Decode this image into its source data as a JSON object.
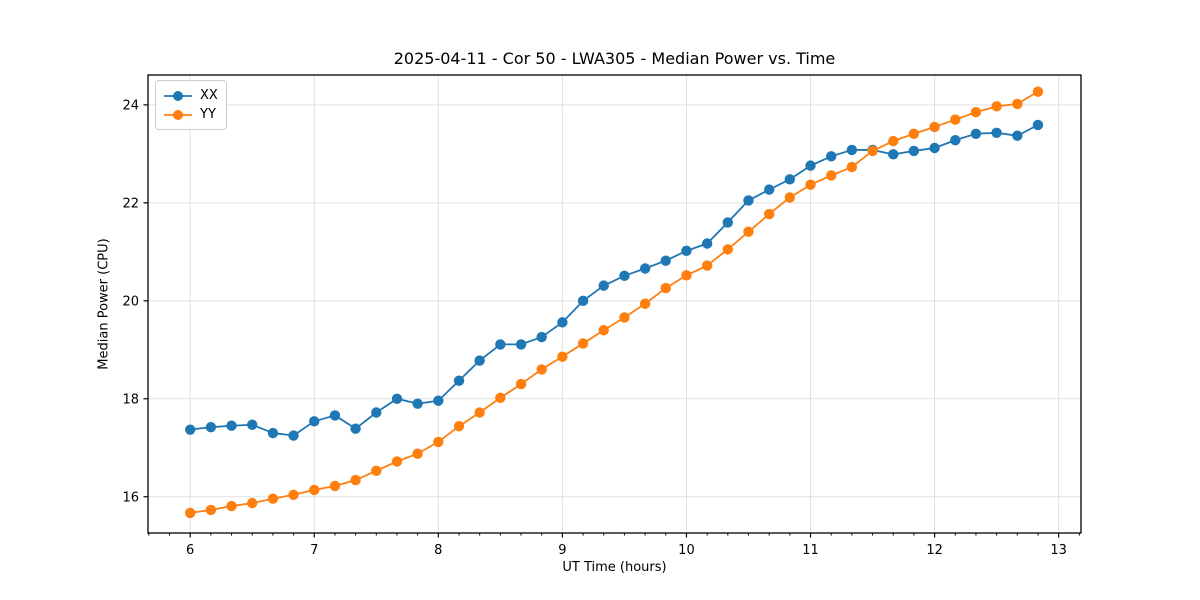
{
  "chart_data": {
    "type": "line",
    "title": "2025-04-11 - Cor 50 - LWA305 - Median Power vs. Time",
    "xlabel": "UT Time (hours)",
    "ylabel": "Median Power (CPU)",
    "xlim": [
      5.66,
      13.18
    ],
    "ylim": [
      15.26,
      24.61
    ],
    "x_ticks": [
      6,
      7,
      8,
      9,
      10,
      11,
      12,
      13
    ],
    "y_ticks": [
      16,
      18,
      20,
      22,
      24
    ],
    "x_minor_step": 0.1667,
    "grid": true,
    "grid_color": "#e0e0e0",
    "legend_position": "upper-left",
    "x": [
      6.0,
      6.167,
      6.333,
      6.5,
      6.667,
      6.833,
      7.0,
      7.167,
      7.333,
      7.5,
      7.667,
      7.833,
      8.0,
      8.167,
      8.333,
      8.5,
      8.667,
      8.833,
      9.0,
      9.167,
      9.333,
      9.5,
      9.667,
      9.833,
      10.0,
      10.167,
      10.333,
      10.5,
      10.667,
      10.833,
      11.0,
      11.167,
      11.333,
      11.5,
      11.667,
      11.833,
      12.0,
      12.167,
      12.333,
      12.5,
      12.667,
      12.833
    ],
    "series": [
      {
        "name": "XX",
        "color": "#1f77b4",
        "values": [
          17.37,
          17.42,
          17.45,
          17.47,
          17.3,
          17.25,
          17.54,
          17.66,
          17.39,
          17.72,
          18.0,
          17.9,
          17.96,
          18.37,
          18.78,
          19.11,
          19.11,
          19.26,
          19.56,
          20.0,
          20.31,
          20.51,
          20.66,
          20.82,
          21.02,
          21.17,
          21.6,
          22.05,
          22.27,
          22.48,
          22.76,
          22.95,
          23.08,
          23.08,
          22.99,
          23.06,
          23.12,
          23.28,
          23.41,
          23.43,
          23.37,
          23.59
        ]
      },
      {
        "name": "YY",
        "color": "#ff7f0e",
        "values": [
          15.67,
          15.73,
          15.81,
          15.87,
          15.96,
          16.04,
          16.14,
          16.22,
          16.34,
          16.53,
          16.72,
          16.88,
          17.12,
          17.44,
          17.72,
          18.02,
          18.3,
          18.6,
          18.86,
          19.13,
          19.4,
          19.66,
          19.94,
          20.26,
          20.52,
          20.72,
          21.05,
          21.41,
          21.77,
          22.11,
          22.37,
          22.56,
          22.73,
          23.06,
          23.26,
          23.41,
          23.55,
          23.7,
          23.85,
          23.97,
          24.02,
          24.27
        ]
      }
    ]
  }
}
